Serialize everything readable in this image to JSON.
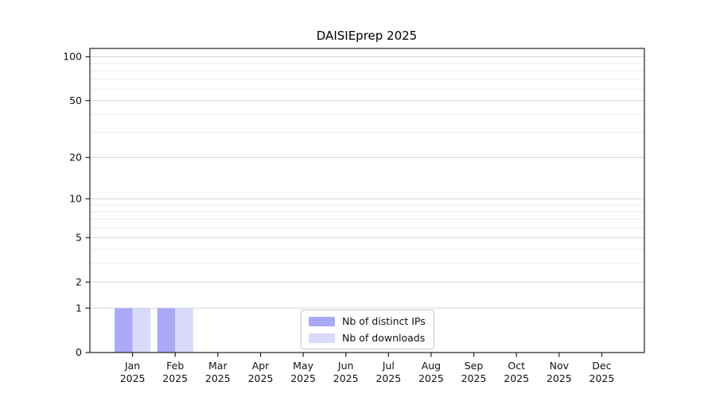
{
  "chart_data": {
    "type": "bar",
    "title": "DAISIEprep 2025",
    "categories": [
      "Jan",
      "Feb",
      "Mar",
      "Apr",
      "May",
      "Jun",
      "Jul",
      "Aug",
      "Sep",
      "Oct",
      "Nov",
      "Dec"
    ],
    "category_year": "2025",
    "series": [
      {
        "name": "Nb of distinct IPs",
        "color": "#a9a9f7",
        "values": [
          1,
          1,
          0,
          0,
          0,
          0,
          0,
          0,
          0,
          0,
          0,
          0
        ]
      },
      {
        "name": "Nb of downloads",
        "color": "#d9d9fa",
        "values": [
          1,
          1,
          0,
          0,
          0,
          0,
          0,
          0,
          0,
          0,
          0,
          0
        ]
      }
    ],
    "y_scale": "log1p",
    "y_ticks": [
      0,
      1,
      2,
      5,
      10,
      20,
      50,
      100
    ],
    "y_minor_gridlines": [
      3,
      4,
      6,
      7,
      8,
      9,
      30,
      40,
      60,
      70,
      80,
      90
    ],
    "ylim": [
      0,
      114
    ],
    "xlim": [
      0,
      13
    ],
    "grid": {
      "major_color": "#d4d4d4",
      "minor_color": "#eaeaea"
    },
    "axis_color": "#222222",
    "text_color": "#111111",
    "legend_position": "bottom-center"
  }
}
